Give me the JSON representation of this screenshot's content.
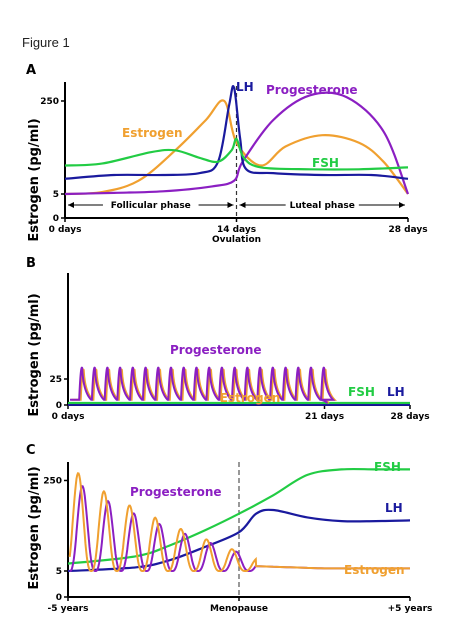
{
  "figure_caption": "Figure 1",
  "colors": {
    "estrogen": "#f0a030",
    "progesterone": "#8b1fc2",
    "lh": "#1a1a9e",
    "fsh": "#22cc44",
    "axis": "#000000"
  },
  "chart_data": [
    {
      "panel": "A",
      "type": "line",
      "ylabel": "Estrogen (pg/ml)",
      "x_range": [
        0,
        28
      ],
      "y_ticks": [
        {
          "value": 0,
          "label": "0"
        },
        {
          "value": 5,
          "label": "5"
        },
        {
          "value": 250,
          "label": "250"
        }
      ],
      "x_ticks": [
        {
          "value": 0,
          "label": "0 days"
        },
        {
          "value": 14,
          "label": "14 days"
        },
        {
          "value": 28,
          "label": "28 days"
        }
      ],
      "x_annotation": {
        "x": 14,
        "label": "Ovulation"
      },
      "phases": [
        {
          "label": "Follicular phase",
          "from": 0,
          "to": 14
        },
        {
          "label": "Luteal phase",
          "from": 14,
          "to": 28
        }
      ],
      "series": [
        {
          "name": "Estrogen",
          "color_key": "estrogen",
          "points": [
            [
              0,
              5
            ],
            [
              3,
              10
            ],
            [
              6,
              40
            ],
            [
              9,
              120
            ],
            [
              11.5,
              200
            ],
            [
              13,
              250
            ],
            [
              14,
              140
            ],
            [
              16,
              80
            ],
            [
              18,
              130
            ],
            [
              21,
              160
            ],
            [
              24,
              140
            ],
            [
              26,
              90
            ],
            [
              28,
              5
            ]
          ]
        },
        {
          "name": "Progesterone",
          "color_key": "progesterone",
          "points": [
            [
              0,
              5
            ],
            [
              4,
              8
            ],
            [
              8,
              12
            ],
            [
              12,
              25
            ],
            [
              13.8,
              40
            ],
            [
              14.5,
              90
            ],
            [
              17,
              200
            ],
            [
              20,
              265
            ],
            [
              23,
              260
            ],
            [
              26,
              170
            ],
            [
              28,
              5
            ]
          ]
        },
        {
          "name": "LH",
          "color_key": "lh",
          "points": [
            [
              0,
              45
            ],
            [
              4,
              55
            ],
            [
              8,
              55
            ],
            [
              11,
              60
            ],
            [
              12.5,
              90
            ],
            [
              13.4,
              240
            ],
            [
              13.8,
              285
            ],
            [
              14.3,
              150
            ],
            [
              14.8,
              70
            ],
            [
              17,
              60
            ],
            [
              21,
              55
            ],
            [
              25,
              55
            ],
            [
              28,
              45
            ]
          ]
        },
        {
          "name": "FSH",
          "color_key": "fsh",
          "points": [
            [
              0,
              80
            ],
            [
              3,
              85
            ],
            [
              7,
              115
            ],
            [
              9,
              120
            ],
            [
              11,
              100
            ],
            [
              12.5,
              90
            ],
            [
              13.6,
              120
            ],
            [
              14,
              150
            ],
            [
              14.6,
              100
            ],
            [
              16,
              75
            ],
            [
              20,
              70
            ],
            [
              24,
              70
            ],
            [
              28,
              75
            ]
          ]
        }
      ],
      "labels": [
        {
          "text": "Estrogen",
          "series": "Estrogen"
        },
        {
          "text": "Progesterone",
          "series": "Progesterone"
        },
        {
          "text": "LH",
          "series": "LH"
        },
        {
          "text": "FSH",
          "series": "FSH"
        }
      ]
    },
    {
      "panel": "B",
      "type": "line",
      "ylabel": "Estrogen (pg/ml)",
      "x_range": [
        0,
        28
      ],
      "y_ticks": [
        {
          "value": 0,
          "label": "0"
        },
        {
          "value": 25,
          "label": "25"
        }
      ],
      "x_ticks": [
        {
          "value": 0,
          "label": "0 days"
        },
        {
          "value": 21,
          "label": "21 days"
        },
        {
          "value": 28,
          "label": "28 days"
        }
      ],
      "pulse_count": 20,
      "pulse_end": 21,
      "series": [
        {
          "name": "Progesterone",
          "color_key": "progesterone",
          "baseline": 5,
          "peak": 36
        },
        {
          "name": "Estrogen",
          "color_key": "estrogen",
          "baseline": 5,
          "peak": 34
        },
        {
          "name": "FSH",
          "color_key": "fsh",
          "level": 2
        },
        {
          "name": "LH",
          "color_key": "lh",
          "level": 2
        }
      ],
      "labels": [
        {
          "text": "Progesterone",
          "series": "Progesterone"
        },
        {
          "text": "Estrogen",
          "series": "Estrogen"
        },
        {
          "text": "FSH",
          "series": "FSH"
        },
        {
          "text": "LH",
          "series": "LH"
        }
      ]
    },
    {
      "panel": "C",
      "type": "line",
      "ylabel": "Estrogen (pg/ml)",
      "x_range": [
        -5,
        5
      ],
      "y_ticks": [
        {
          "value": 0,
          "label": "0"
        },
        {
          "value": 5,
          "label": "5"
        },
        {
          "value": 250,
          "label": "250"
        }
      ],
      "x_ticks": [
        {
          "value": -5,
          "label": "-5 years"
        },
        {
          "value": 0,
          "label": "Menopause"
        },
        {
          "value": 5,
          "label": "+5 years"
        }
      ],
      "x_annotation": {
        "x": 0,
        "label": ""
      },
      "series": [
        {
          "name": "FSH",
          "color_key": "fsh",
          "points": [
            [
              -5,
              25
            ],
            [
              -3,
              45
            ],
            [
              -2,
              75
            ],
            [
              -1,
              115
            ],
            [
              0,
              160
            ],
            [
              1,
              210
            ],
            [
              2,
              265
            ],
            [
              3,
              280
            ],
            [
              4,
              280
            ],
            [
              5,
              280
            ]
          ]
        },
        {
          "name": "LH",
          "color_key": "lh",
          "points": [
            [
              -5,
              5
            ],
            [
              -3,
              15
            ],
            [
              -2,
              35
            ],
            [
              -1,
              70
            ],
            [
              0,
              110
            ],
            [
              0.5,
              160
            ],
            [
              1,
              170
            ],
            [
              2,
              150
            ],
            [
              3,
              140
            ],
            [
              4,
              140
            ],
            [
              5,
              142
            ]
          ]
        },
        {
          "name": "Progesterone",
          "color_key": "progesterone",
          "oscillating": true,
          "x_end": 0.5,
          "peak_start": 270,
          "peak_end": 40,
          "period": 0.75
        },
        {
          "name": "Estrogen",
          "color_key": "estrogen",
          "oscillating": true,
          "x_end": 0.5,
          "peak_start": 300,
          "peak_end": 40,
          "period": 0.75
        }
      ],
      "labels": [
        {
          "text": "Progesterone",
          "series": "Progesterone"
        },
        {
          "text": "FSH",
          "series": "FSH"
        },
        {
          "text": "LH",
          "series": "LH"
        },
        {
          "text": "Estrogen",
          "series": "Estrogen"
        }
      ]
    }
  ]
}
